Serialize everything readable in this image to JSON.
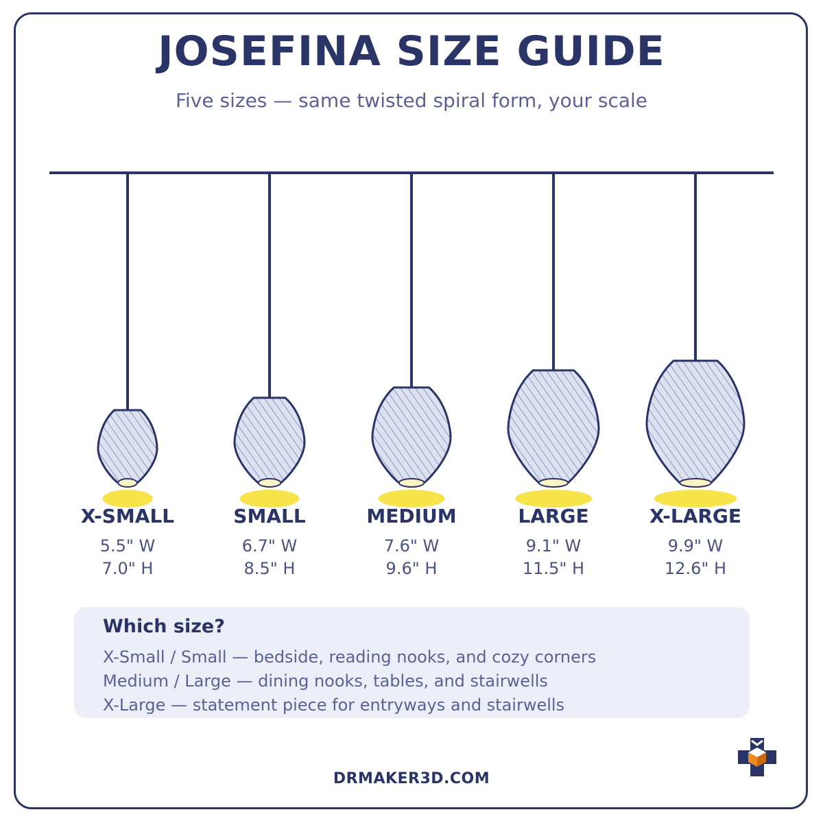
{
  "title": "JOSEFINA SIZE GUIDE",
  "subtitle": "Five sizes — same twisted spiral form, your scale",
  "sizes": [
    {
      "label": "X-SMALL",
      "width": "5.5\" W",
      "height": "7.0\" H"
    },
    {
      "label": "SMALL",
      "width": "6.7\" W",
      "height": "8.5\" H"
    },
    {
      "label": "MEDIUM",
      "width": "7.6\" W",
      "height": "9.6\" H"
    },
    {
      "label": "LARGE",
      "width": "9.1\" W",
      "height": "11.5\" H"
    },
    {
      "label": "X-LARGE",
      "width": "9.9\" W",
      "height": "12.6\" H"
    }
  ],
  "guide": {
    "heading": "Which size?",
    "lines": [
      "X-Small / Small — bedside, reading nooks, and cozy corners",
      "Medium / Large — dining nooks, tables, and stairwells",
      "X-Large — statement piece for entryways and stairwells"
    ]
  },
  "footer": "DRMAKER3D.COM",
  "colors": {
    "navy": "#2b3467",
    "glow": "#f7e34a",
    "bulb": "#fbf3c4",
    "shade_fill": "#dde2f0",
    "panel": "#eceff7",
    "logo_orange": "#f08a1e"
  },
  "icons": [
    "ceiling-rail",
    "pendant-lamp-icon",
    "drmaker-logo-icon"
  ]
}
